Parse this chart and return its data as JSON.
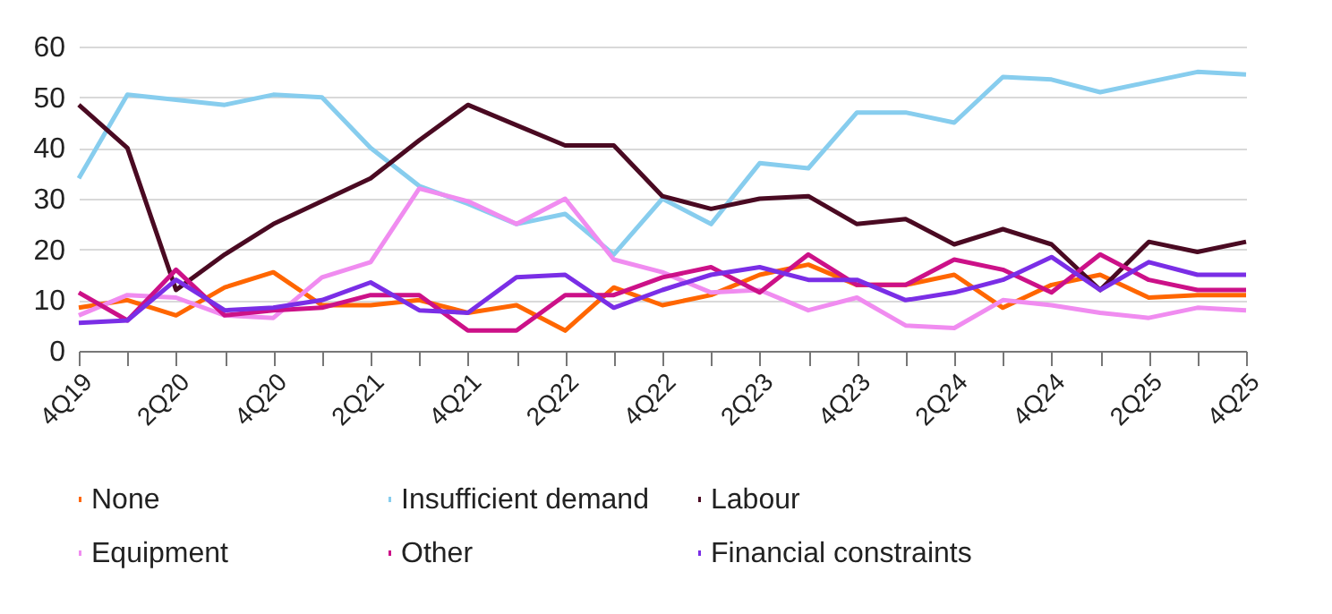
{
  "chart_data": {
    "type": "line",
    "categories": [
      "4Q19",
      null,
      "2Q20",
      null,
      "4Q20",
      null,
      "2Q21",
      null,
      "4Q21",
      null,
      "2Q22",
      null,
      "4Q22",
      null,
      "2Q23",
      null,
      "4Q23",
      null,
      "2Q24",
      null,
      "4Q24",
      null,
      "2Q25",
      null,
      "4Q25"
    ],
    "series": [
      {
        "name": "None",
        "color": "#ff6600",
        "values": [
          8.5,
          10,
          7,
          12.5,
          15.5,
          9,
          9,
          10,
          7.5,
          9,
          4,
          12.5,
          9,
          11,
          15,
          17,
          13,
          13,
          15,
          8.5,
          13,
          15,
          10.5,
          11,
          11
        ]
      },
      {
        "name": "Insufficient demand",
        "color": "#87cdee",
        "values": [
          34,
          50.5,
          49.5,
          48.5,
          50.5,
          50,
          40,
          32.5,
          29,
          25,
          27,
          19,
          30,
          25,
          37,
          36,
          47,
          47,
          45,
          54,
          53.5,
          51,
          53,
          55,
          54.5
        ]
      },
      {
        "name": "Labour",
        "color": "#4a0a22",
        "values": [
          48.5,
          40,
          12,
          19,
          25,
          29.5,
          34,
          41.5,
          48.5,
          44.5,
          40.5,
          40.5,
          30.5,
          28,
          30,
          30.5,
          25,
          26,
          21,
          24,
          21,
          12,
          21.5,
          19.5,
          21.5
        ]
      },
      {
        "name": "Equipment",
        "color": "#f08cf0",
        "values": [
          7,
          11,
          10.5,
          7,
          6.5,
          14.5,
          17.5,
          32,
          29.5,
          25,
          30,
          18,
          15.5,
          11.5,
          12,
          8,
          10.5,
          5,
          4.5,
          10,
          9,
          7.5,
          6.5,
          8.5,
          8
        ]
      },
      {
        "name": "Other",
        "color": "#cc1188",
        "values": [
          11.5,
          6,
          16,
          7,
          8,
          8.5,
          11,
          11,
          4,
          4,
          11,
          11,
          14.5,
          16.5,
          11.5,
          19,
          13,
          13,
          18,
          16,
          11.5,
          19,
          14,
          12,
          12
        ]
      },
      {
        "name": "Financial constraints",
        "color": "#7a2ee6",
        "values": [
          5.5,
          6,
          14,
          8,
          8.5,
          10,
          13.5,
          8,
          7.5,
          14.5,
          15,
          8.5,
          12,
          15,
          16.5,
          14,
          14,
          10,
          11.5,
          14,
          18.5,
          12,
          17.5,
          15,
          15
        ]
      }
    ],
    "ylim": [
      0,
      60
    ],
    "yticks": [
      0,
      10,
      20,
      30,
      40,
      50,
      60
    ],
    "grid": "y",
    "legend": "bottom",
    "marker": "none",
    "line_style": "solid"
  }
}
